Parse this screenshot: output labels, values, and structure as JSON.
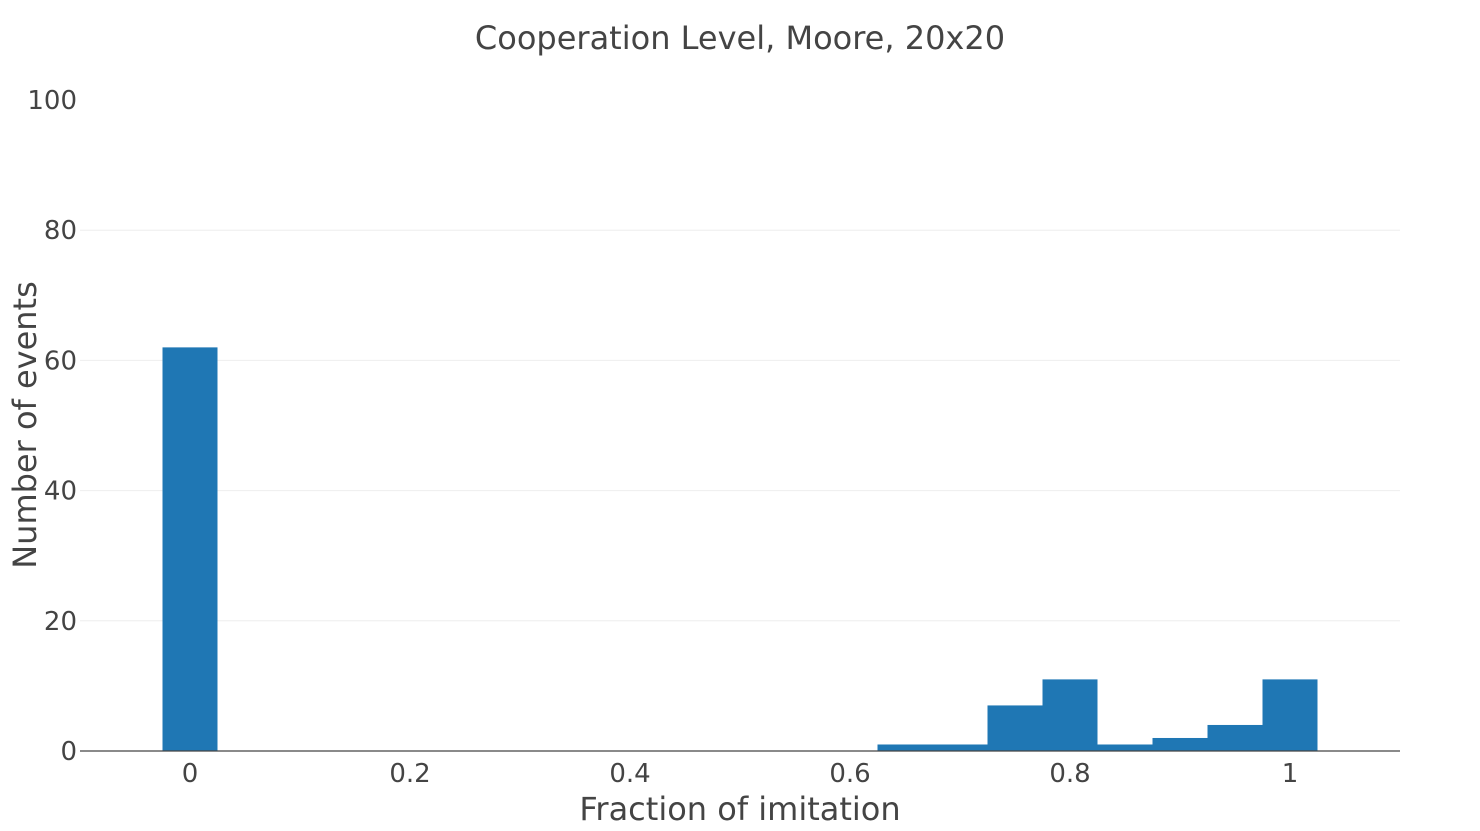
{
  "chart_data": {
    "type": "bar",
    "title": "Cooperation Level, Moore, 20x20",
    "xlabel": "Fraction of imitation",
    "ylabel": "Number of events",
    "xlim": [
      -0.1,
      1.1
    ],
    "ylim": [
      0,
      100
    ],
    "bin_width": 0.05,
    "x_ticks": [
      {
        "value": 0,
        "label": "0"
      },
      {
        "value": 0.2,
        "label": "0.2"
      },
      {
        "value": 0.4,
        "label": "0.4"
      },
      {
        "value": 0.6,
        "label": "0.6"
      },
      {
        "value": 0.8,
        "label": "0.8"
      },
      {
        "value": 1,
        "label": "1"
      }
    ],
    "y_ticks": [
      {
        "value": 0,
        "label": "0"
      },
      {
        "value": 20,
        "label": "20"
      },
      {
        "value": 40,
        "label": "40"
      },
      {
        "value": 60,
        "label": "60"
      },
      {
        "value": 80,
        "label": "80"
      },
      {
        "value": 100,
        "label": "100"
      }
    ],
    "x": [
      0,
      0.65,
      0.7,
      0.75,
      0.8,
      0.85,
      0.9,
      0.95,
      1.0
    ],
    "values": [
      62,
      1,
      1,
      7,
      11,
      1,
      2,
      4,
      11
    ],
    "bar_color": "#1f77b4",
    "grid": true,
    "legend": "none"
  }
}
